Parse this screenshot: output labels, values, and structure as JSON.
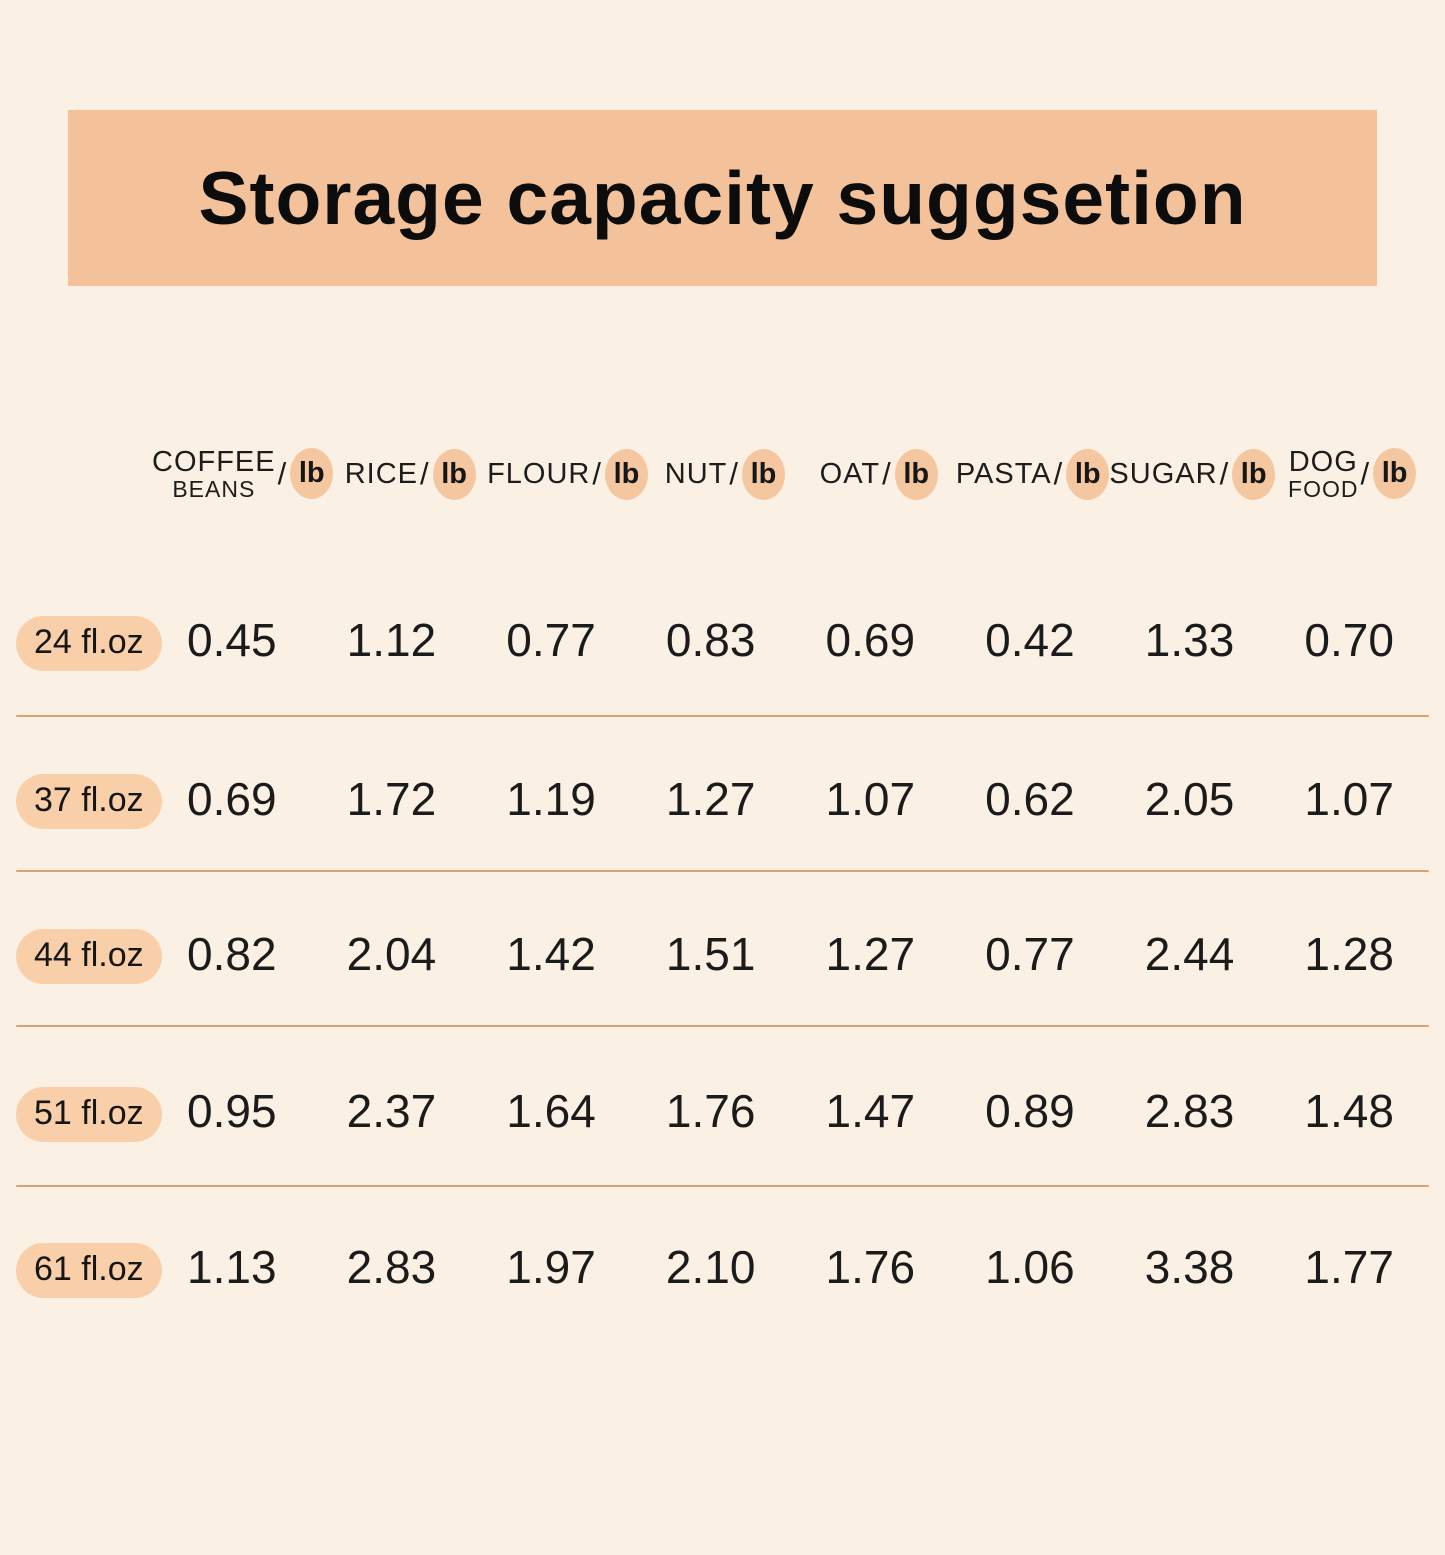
{
  "title": "Storage capacity suggsetion",
  "colors": {
    "page_bg": "#fbf0e4",
    "banner_bg": "#f4c29a",
    "badge_bg": "#f5c7a0",
    "pill_bg": "#f9cfaa",
    "divider": "#d7a374",
    "text": "#141414"
  },
  "table": {
    "separator": "/",
    "columns": [
      {
        "line1": "COFFEE",
        "line2": "BEANS",
        "unit": "lb"
      },
      {
        "line1": "RICE",
        "line2": "",
        "unit": "lb"
      },
      {
        "line1": "FLOUR",
        "line2": "",
        "unit": "lb"
      },
      {
        "line1": "NUT",
        "line2": "",
        "unit": "lb"
      },
      {
        "line1": "OAT",
        "line2": "",
        "unit": "lb"
      },
      {
        "line1": "PASTA",
        "line2": "",
        "unit": "lb"
      },
      {
        "line1": "SUGAR",
        "line2": "",
        "unit": "lb"
      },
      {
        "line1": "DOG",
        "line2": "FOOD",
        "unit": "lb"
      }
    ],
    "rows": [
      {
        "label": "24 fl.oz",
        "values": [
          "0.45",
          "1.12",
          "0.77",
          "0.83",
          "0.69",
          "0.42",
          "1.33",
          "0.70"
        ]
      },
      {
        "label": "37 fl.oz",
        "values": [
          "0.69",
          "1.72",
          "1.19",
          "1.27",
          "1.07",
          "0.62",
          "2.05",
          "1.07"
        ]
      },
      {
        "label": "44 fl.oz",
        "values": [
          "0.82",
          "2.04",
          "1.42",
          "1.51",
          "1.27",
          "0.77",
          "2.44",
          "1.28"
        ]
      },
      {
        "label": "51 fl.oz",
        "values": [
          "0.95",
          "2.37",
          "1.64",
          "1.76",
          "1.47",
          "0.89",
          "2.83",
          "1.48"
        ]
      },
      {
        "label": "61 fl.oz",
        "values": [
          "1.13",
          "2.83",
          "1.97",
          "2.10",
          "1.76",
          "1.06",
          "3.38",
          "1.77"
        ]
      }
    ]
  },
  "chart_data": {
    "type": "table",
    "title": "Storage capacity suggsetion",
    "categories": [
      "24 fl.oz",
      "37 fl.oz",
      "44 fl.oz",
      "51 fl.oz",
      "61 fl.oz"
    ],
    "columns": [
      "COFFEE BEANS/lb",
      "RICE/lb",
      "FLOUR/lb",
      "NUT/lb",
      "OAT/lb",
      "PASTA/lb",
      "SUGAR/lb",
      "DOG FOOD/lb"
    ],
    "series": [
      {
        "name": "COFFEE BEANS/lb",
        "values": [
          0.45,
          0.69,
          0.82,
          0.95,
          1.13
        ]
      },
      {
        "name": "RICE/lb",
        "values": [
          1.12,
          1.72,
          2.04,
          2.37,
          2.83
        ]
      },
      {
        "name": "FLOUR/lb",
        "values": [
          0.77,
          1.19,
          1.42,
          1.64,
          1.97
        ]
      },
      {
        "name": "NUT/lb",
        "values": [
          0.83,
          1.27,
          1.51,
          1.76,
          2.1
        ]
      },
      {
        "name": "OAT/lb",
        "values": [
          0.69,
          1.07,
          1.27,
          1.47,
          1.76
        ]
      },
      {
        "name": "PASTA/lb",
        "values": [
          0.42,
          0.62,
          0.77,
          0.89,
          1.06
        ]
      },
      {
        "name": "SUGAR/lb",
        "values": [
          1.33,
          2.05,
          2.44,
          2.83,
          3.38
        ]
      },
      {
        "name": "DOG FOOD/lb",
        "values": [
          0.7,
          1.07,
          1.28,
          1.48,
          1.77
        ]
      }
    ]
  }
}
